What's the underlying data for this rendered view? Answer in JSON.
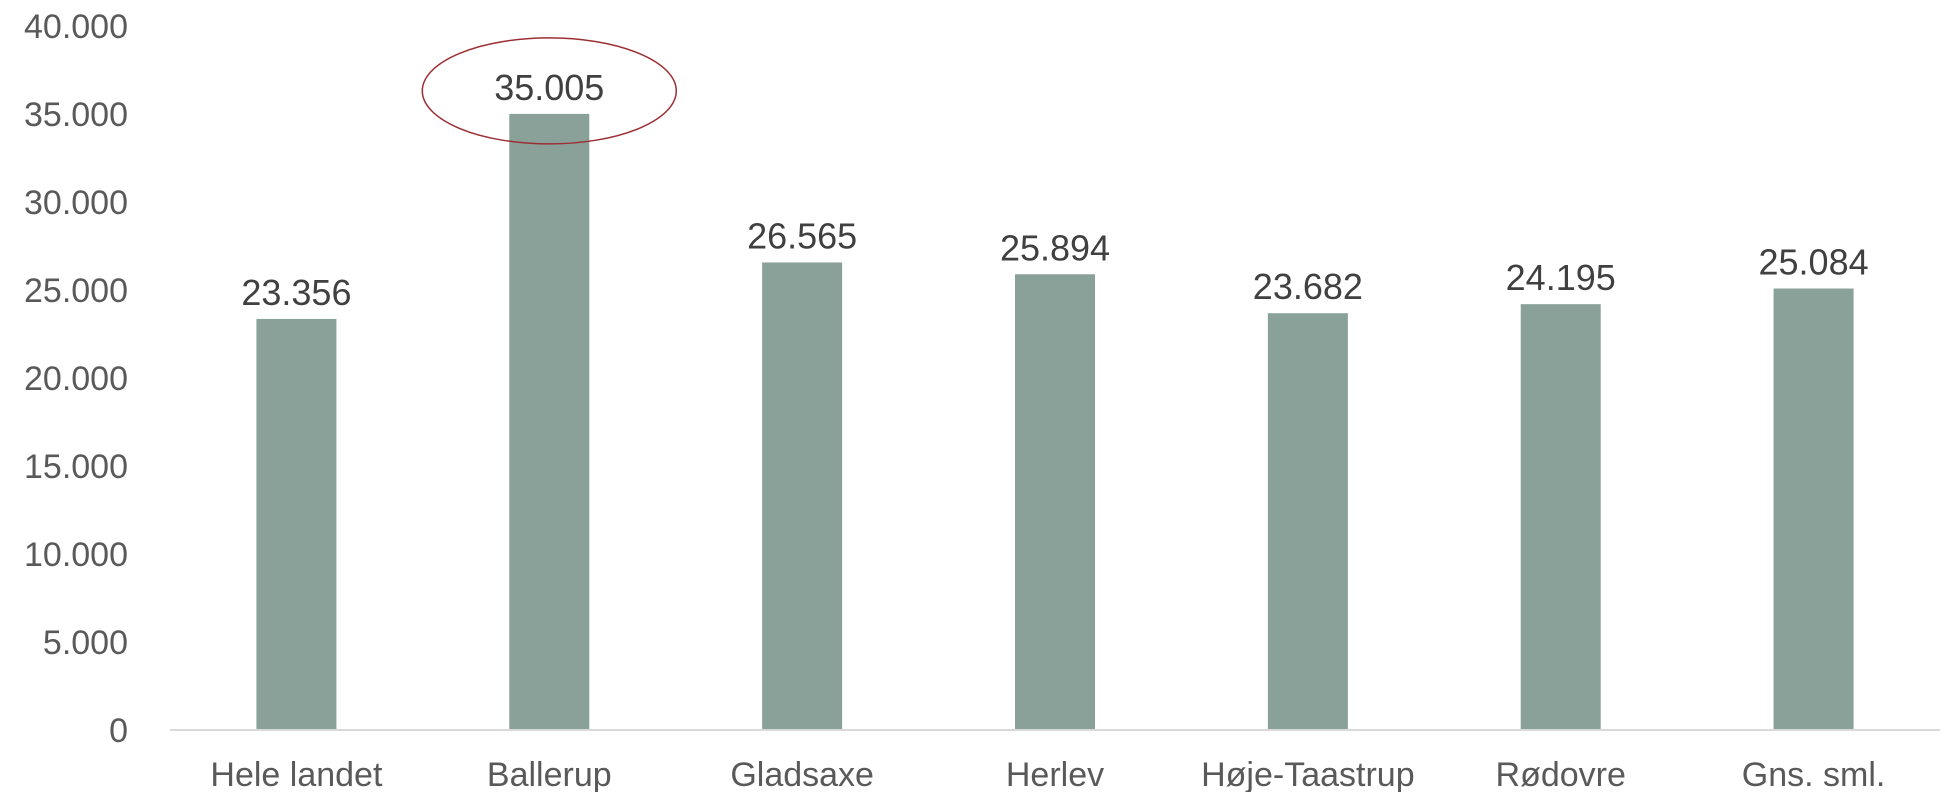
{
  "chart_data": {
    "type": "bar",
    "categories": [
      "Hele landet",
      "Ballerup",
      "Gladsaxe",
      "Herlev",
      "Høje-Taastrup",
      "Rødovre",
      "Gns. sml."
    ],
    "values": [
      23356,
      35005,
      26565,
      25894,
      23682,
      24195,
      25084
    ],
    "value_labels": [
      "23.356",
      "35.005",
      "26.565",
      "25.894",
      "23.682",
      "24.195",
      "25.084"
    ],
    "ylim": [
      0,
      40000
    ],
    "yticks": [
      0,
      5000,
      10000,
      15000,
      20000,
      25000,
      30000,
      35000,
      40000
    ],
    "ytick_labels": [
      "0",
      "5.000",
      "10.000",
      "15.000",
      "20.000",
      "25.000",
      "30.000",
      "35.000",
      "40.000"
    ],
    "grid": false,
    "legend": "none",
    "highlight_category": "Ballerup",
    "colors": {
      "bar": "#8aa199",
      "axis": "#d9d9d9",
      "highlight_ellipse": "#9b2f34"
    }
  }
}
